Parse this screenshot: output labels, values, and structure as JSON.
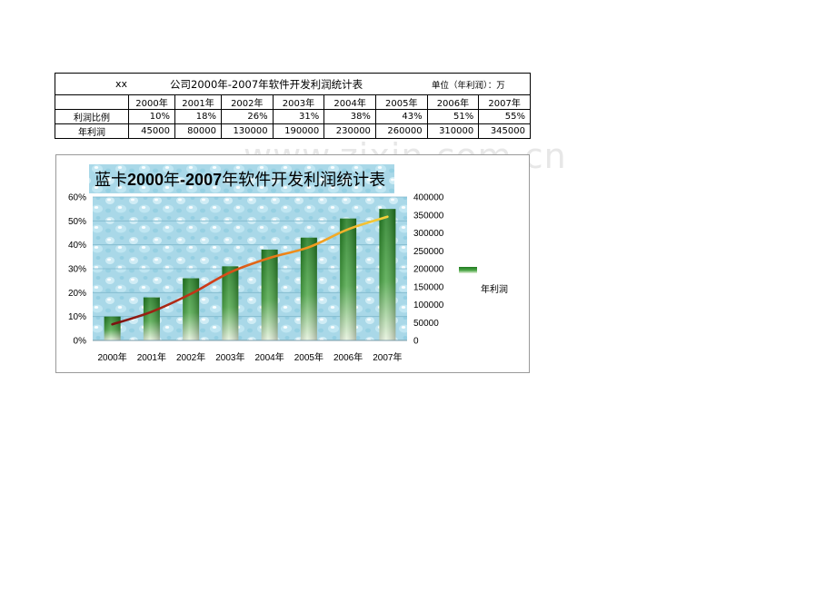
{
  "table": {
    "prefix": "xx",
    "title": "公司2000年-2007年软件开发利润统计表",
    "unit": "单位（年利润）：万",
    "years": [
      "2000年",
      "2001年",
      "2002年",
      "2003年",
      "2004年",
      "2005年",
      "2006年",
      "2007年"
    ],
    "rows": [
      {
        "label": "利润比例",
        "values": [
          "10%",
          "18%",
          "26%",
          "31%",
          "38%",
          "43%",
          "51%",
          "55%"
        ]
      },
      {
        "label": "年利润",
        "values": [
          "45000",
          "80000",
          "130000",
          "190000",
          "230000",
          "260000",
          "310000",
          "345000"
        ]
      }
    ]
  },
  "watermark": "www.zixin.com.cn",
  "chart_data": {
    "type": "bar",
    "title_prefix": "蓝卡",
    "title_bold_1": "2000",
    "title_mid": "年",
    "title_bold_2": "-2007",
    "title_suffix": "年软件开发利润统计表",
    "categories": [
      "2000年",
      "2001年",
      "2002年",
      "2003年",
      "2004年",
      "2005年",
      "2006年",
      "2007年"
    ],
    "series": [
      {
        "name": "",
        "kind": "bar",
        "axis": "left",
        "values": [
          0.1,
          0.18,
          0.26,
          0.31,
          0.38,
          0.43,
          0.51,
          0.55
        ],
        "color": "#2e8b2e"
      },
      {
        "name": "年利润",
        "kind": "line",
        "axis": "right",
        "values": [
          45000,
          80000,
          130000,
          190000,
          230000,
          260000,
          310000,
          345000
        ],
        "color": "#d45a10"
      }
    ],
    "y_left": {
      "lim": [
        0,
        0.6
      ],
      "ticks": [
        "0%",
        "10%",
        "20%",
        "30%",
        "40%",
        "50%",
        "60%"
      ]
    },
    "y_right": {
      "lim": [
        0,
        400000
      ],
      "ticks": [
        "0",
        "50000",
        "100000",
        "150000",
        "200000",
        "250000",
        "300000",
        "350000",
        "400000"
      ]
    },
    "grid": true,
    "legend": "right",
    "background": "water-drops"
  }
}
